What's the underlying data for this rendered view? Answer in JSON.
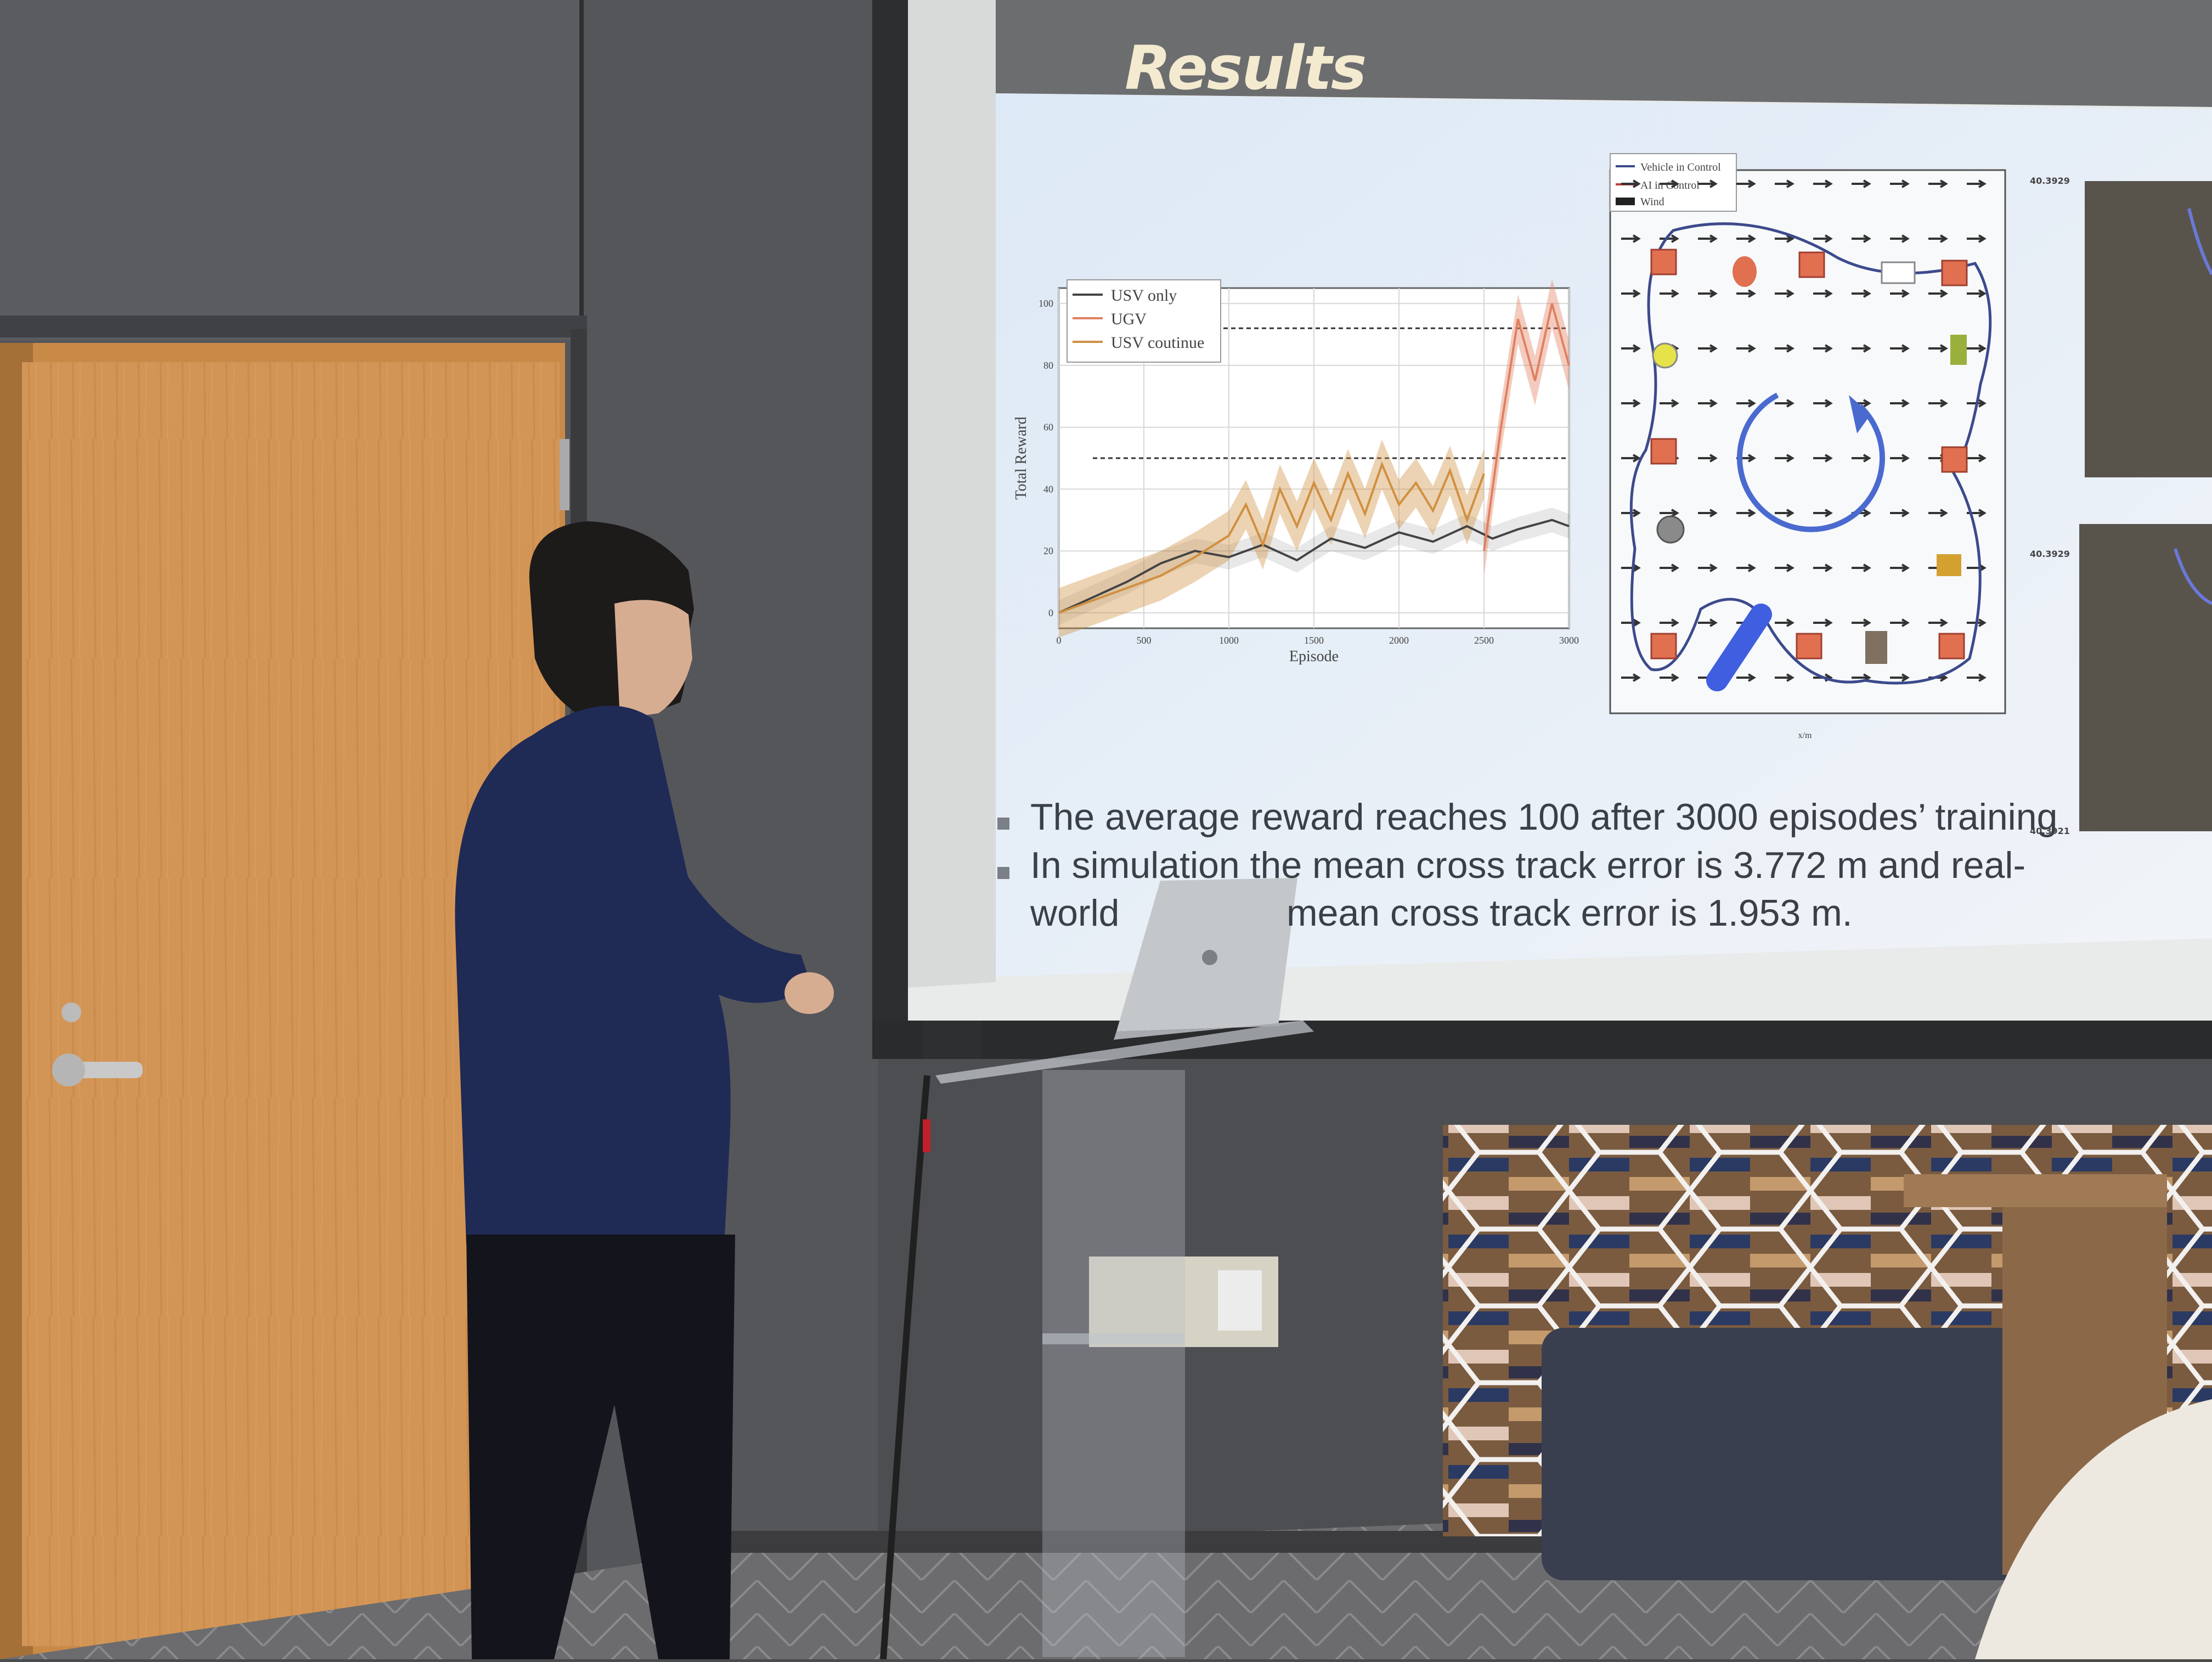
{
  "slide": {
    "title": "Results",
    "bullets": [
      "The average reward reaches 100 after 3000 episodes’ training",
      "In simulation the mean cross track error is 3.772 m and real-",
      "world",
      "mean cross track error is 1.953 m."
    ]
  },
  "chart_data": {
    "type": "line",
    "xlabel": "Episode",
    "ylabel": "Total Reward",
    "xlim": [
      0,
      3000
    ],
    "ylim": [
      -5,
      105
    ],
    "xticks": [
      "0",
      "500",
      "1000",
      "1500",
      "2000",
      "2500",
      "3000"
    ],
    "yticks": [
      "0",
      "20",
      "40",
      "60",
      "80",
      "100"
    ],
    "legend_position": "top-left",
    "grid": true,
    "series": [
      {
        "name": "USV only",
        "color": "#444444",
        "x": [
          0,
          200,
          400,
          600,
          800,
          1000,
          1200,
          1400,
          1600,
          1800,
          2000,
          2200,
          2400,
          2550,
          2700,
          2900,
          3000
        ],
        "y": [
          0,
          5,
          10,
          16,
          20,
          18,
          22,
          17,
          24,
          21,
          26,
          23,
          28,
          24,
          27,
          30,
          28
        ]
      },
      {
        "name": "UGV",
        "color": "#e08060",
        "x": [
          2500,
          2600,
          2700,
          2800,
          2900,
          3000
        ],
        "y": [
          20,
          60,
          95,
          75,
          100,
          80
        ]
      },
      {
        "name": "USV coutinue",
        "color": "#d09040",
        "x": [
          0,
          200,
          400,
          600,
          800,
          1000,
          1100,
          1200,
          1300,
          1400,
          1500,
          1600,
          1700,
          1800,
          1900,
          2000,
          2100,
          2200,
          2300,
          2400,
          2500
        ],
        "y": [
          0,
          4,
          8,
          12,
          18,
          25,
          35,
          22,
          40,
          28,
          42,
          30,
          45,
          32,
          48,
          35,
          42,
          33,
          46,
          30,
          45
        ]
      }
    ],
    "reference_lines": [
      92,
      50
    ]
  },
  "track_legend": [
    "Vehicle in Control",
    "AI in Control",
    "Wind"
  ],
  "track_xlabel": "x/m",
  "colors": {
    "usv_only": "#444444",
    "ugv": "#e08060",
    "usv_continue": "#d09040",
    "track_path": "#3c4a8c",
    "marker": "#e07050"
  }
}
